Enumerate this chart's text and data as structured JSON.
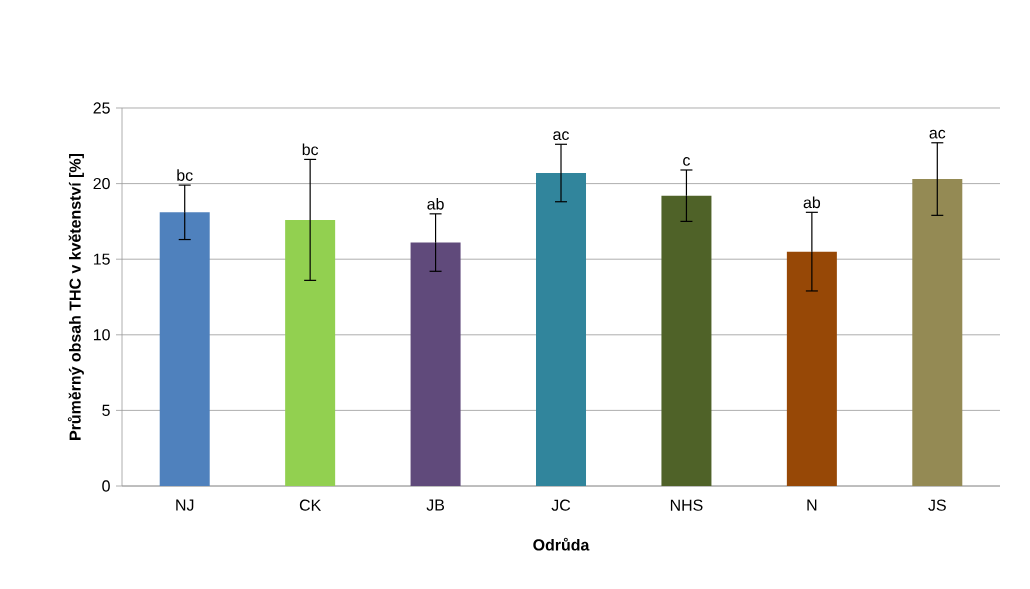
{
  "chart_data": {
    "type": "bar",
    "xlabel": "Odrůda",
    "ylabel": "Průměrný obsah THC v květenství [%]",
    "categories": [
      "NJ",
      "CK",
      "JB",
      "JC",
      "NHS",
      "N",
      "JS"
    ],
    "values": [
      18.1,
      17.6,
      16.1,
      20.7,
      19.2,
      15.5,
      20.3
    ],
    "errors": [
      1.8,
      4.0,
      1.9,
      1.9,
      1.7,
      2.6,
      2.4
    ],
    "colors": [
      "#4f81bd",
      "#92d050",
      "#604a7b",
      "#31859c",
      "#4f6228",
      "#974806",
      "#948a54"
    ],
    "ylim": [
      0,
      25
    ],
    "yticks": [
      0,
      5,
      10,
      15,
      20,
      25
    ],
    "grid": "y",
    "annotations": [
      {
        "text": "bc",
        "x": "NJ",
        "y": 19.9
      },
      {
        "text": "bc",
        "x": "CK",
        "y": 21.6
      },
      {
        "text": "ab",
        "x": "JB",
        "y": 18.0
      },
      {
        "text": "ac",
        "x": "JC",
        "y": 22.6
      },
      {
        "text": "c",
        "x": "NHS",
        "y": 20.9
      },
      {
        "text": "ab",
        "x": "N",
        "y": 18.1
      },
      {
        "text": "ac",
        "x": "JS",
        "y": 22.7
      }
    ]
  }
}
